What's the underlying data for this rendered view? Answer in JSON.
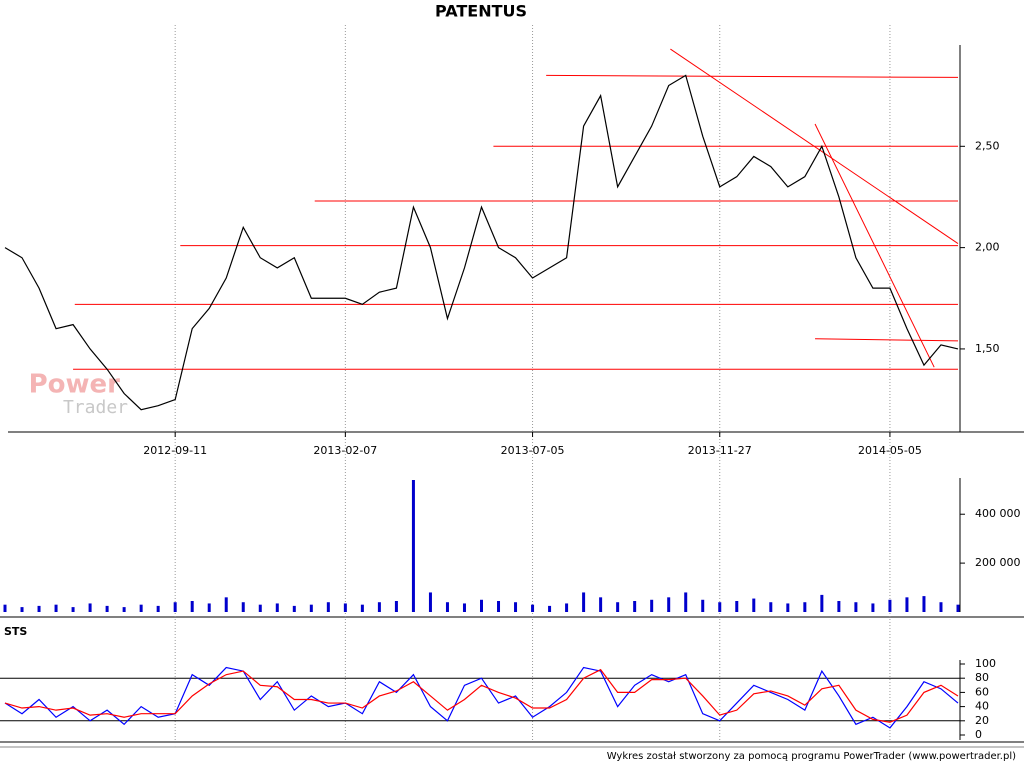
{
  "chart_data": [
    {
      "type": "line",
      "title": "PATENTUS",
      "color": "#000000",
      "categories": [
        null,
        null,
        null,
        null,
        null,
        null,
        null,
        null,
        null,
        null,
        "2012-09-11",
        null,
        null,
        null,
        null,
        null,
        null,
        null,
        null,
        null,
        "2013-02-07",
        null,
        null,
        null,
        null,
        null,
        null,
        null,
        null,
        null,
        null,
        "2013-07-05",
        null,
        null,
        null,
        null,
        null,
        null,
        null,
        null,
        null,
        null,
        "2013-11-27",
        null,
        null,
        null,
        null,
        null,
        null,
        null,
        null,
        null,
        "2014-05-05",
        null,
        null,
        null,
        null
      ],
      "values": [
        2.0,
        1.95,
        1.8,
        1.6,
        1.62,
        1.5,
        1.4,
        1.28,
        1.2,
        1.22,
        1.25,
        1.6,
        1.7,
        1.85,
        2.1,
        1.95,
        1.9,
        1.95,
        1.75,
        1.75,
        1.75,
        1.72,
        1.78,
        1.8,
        2.2,
        2.0,
        1.65,
        1.9,
        2.2,
        2.0,
        1.95,
        1.85,
        1.9,
        1.95,
        2.6,
        2.75,
        2.3,
        2.45,
        2.6,
        2.8,
        2.85,
        2.55,
        2.3,
        2.35,
        2.45,
        2.4,
        2.3,
        2.35,
        2.5,
        2.25,
        1.95,
        1.8,
        1.8,
        1.6,
        1.42,
        1.52,
        1.5
      ],
      "ylim": [
        1.09,
        3.0
      ],
      "yticks": [
        {
          "value": 1.5,
          "label": "1,50"
        },
        {
          "value": 2.0,
          "label": "2,00"
        },
        {
          "value": 2.5,
          "label": "2,50"
        }
      ],
      "lines_color": "#ff0000",
      "lines": [
        {
          "x": [
            31.8,
            56
          ],
          "y": [
            2.85,
            2.84
          ]
        },
        {
          "x": [
            28.7,
            56
          ],
          "y": [
            2.5,
            2.5
          ]
        },
        {
          "x": [
            18.2,
            56
          ],
          "y": [
            2.23,
            2.23
          ]
        },
        {
          "x": [
            10.3,
            56
          ],
          "y": [
            2.01,
            2.01
          ]
        },
        {
          "x": [
            4.1,
            56
          ],
          "y": [
            1.72,
            1.72
          ]
        },
        {
          "x": [
            4.0,
            56
          ],
          "y": [
            1.4,
            1.4
          ]
        },
        {
          "x": [
            47.6,
            56
          ],
          "y": [
            1.55,
            1.54
          ]
        },
        {
          "x": [
            39.1,
            56
          ],
          "y": [
            2.98,
            2.02
          ]
        },
        {
          "x": [
            47.6,
            54.6
          ],
          "y": [
            2.61,
            1.41
          ]
        }
      ]
    },
    {
      "type": "bar",
      "color": "#0000cc",
      "values": [
        30000,
        20000,
        25000,
        30000,
        20000,
        35000,
        25000,
        20000,
        30000,
        25000,
        40000,
        45000,
        35000,
        60000,
        40000,
        30000,
        35000,
        25000,
        30000,
        40000,
        35000,
        30000,
        40000,
        45000,
        540000,
        80000,
        40000,
        35000,
        50000,
        45000,
        40000,
        30000,
        25000,
        35000,
        80000,
        60000,
        40000,
        45000,
        50000,
        60000,
        80000,
        50000,
        40000,
        45000,
        55000,
        40000,
        35000,
        40000,
        70000,
        45000,
        40000,
        35000,
        50000,
        60000,
        65000,
        40000,
        30000
      ],
      "ylim": [
        0,
        540000
      ],
      "yticks": [
        {
          "value": 200000,
          "label": "200 000"
        },
        {
          "value": 400000,
          "label": "400 000"
        }
      ]
    },
    {
      "type": "line",
      "title": "STS",
      "series": [
        {
          "color": "#0000ff",
          "values": [
            45,
            30,
            50,
            25,
            40,
            20,
            35,
            15,
            40,
            25,
            30,
            85,
            70,
            95,
            90,
            50,
            75,
            35,
            55,
            40,
            45,
            30,
            75,
            60,
            85,
            40,
            20,
            70,
            80,
            45,
            55,
            25,
            40,
            60,
            95,
            90,
            40,
            70,
            85,
            75,
            85,
            30,
            20,
            45,
            70,
            60,
            50,
            35,
            90,
            55,
            15,
            25,
            10,
            40,
            75,
            65,
            45
          ]
        },
        {
          "color": "#ff0000",
          "values": [
            45,
            38,
            40,
            35,
            38,
            28,
            30,
            25,
            30,
            30,
            30,
            55,
            72,
            85,
            90,
            70,
            68,
            50,
            50,
            45,
            45,
            38,
            55,
            62,
            75,
            55,
            35,
            50,
            70,
            60,
            52,
            38,
            38,
            50,
            80,
            92,
            60,
            60,
            78,
            78,
            80,
            55,
            28,
            35,
            58,
            62,
            55,
            42,
            65,
            70,
            35,
            22,
            18,
            28,
            60,
            70,
            55
          ]
        }
      ],
      "ylim": [
        0,
        100
      ],
      "yticks": [
        0,
        20,
        40,
        60,
        80,
        100
      ],
      "reference_lines": [
        20,
        80
      ]
    }
  ],
  "watermark": {
    "line1": "Power",
    "line2": "Trader"
  },
  "footer": "Wykres został stworzony za pomocą programu PowerTrader (www.powertrader.pl)"
}
